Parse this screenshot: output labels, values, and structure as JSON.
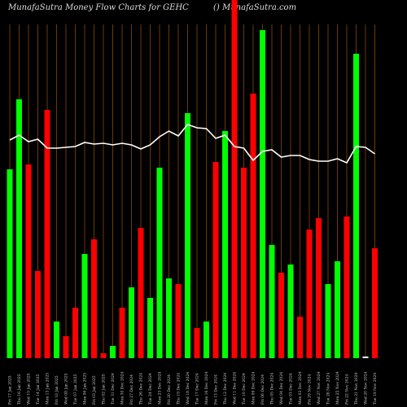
{
  "chart_data": {
    "type": "bar",
    "title": "MunafaSutra  Money Flow  Charts for GEHC",
    "subtitle": "() MunafaSutra.com",
    "categories": [
      "Fri 17 Jan 2025",
      "Thu 16 Jan 2025",
      "Wed 15 Jan 2025",
      "Tue 14 Jan 2025",
      "Mon 13 Jan 2025",
      "Fri 10 Jan 2025",
      "Wed 08 Jan 2025",
      "Tue 07 Jan 2025",
      "Mon 06 Jan 2025",
      "Fri 03 Jan 2025",
      "Thu 02 Jan 2025",
      "Tue 31 Dec 2024",
      "Mon 30 Dec 2024",
      "Fri 27 Dec 2024",
      "Thu 26 Dec 2024",
      "Tue 24 Dec 2024",
      "Mon 23 Dec 2024",
      "Fri 20 Dec 2024",
      "Thu 19 Dec 2024",
      "Wed 18 Dec 2024",
      "Tue 17 Dec 2024",
      "Mon 16 Dec 2024",
      "Fri 13 Dec 2024",
      "Thu 12 Dec 2024",
      "Wed 11 Dec 2024",
      "Tue 10 Dec 2024",
      "Mon 09 Dec 2024",
      "Fri 06 Dec 2024",
      "Thu 05 Dec 2024",
      "Wed 04 Dec 2024",
      "Tue 03 Dec 2024",
      "Mon 02 Dec 2024",
      "Fri 29 Nov 2024",
      "Wed 27 Nov 2024",
      "Tue 26 Nov 2024",
      "Mon 25 Nov 2024",
      "Fri 22 Nov 2024",
      "Thu 21 Nov 2024",
      "Wed 20 Nov 2024",
      "Tue 19 Nov 2024"
    ],
    "values": [
      232,
      318,
      238,
      107,
      305,
      45,
      27,
      62,
      128,
      146,
      6,
      15,
      62,
      87,
      160,
      74,
      234,
      98,
      91,
      301,
      37,
      45,
      241,
      279,
      460,
      234,
      325,
      403,
      139,
      105,
      115,
      51,
      158,
      172,
      91,
      119,
      174,
      374,
      2,
      135
    ],
    "colors": [
      "#00ff00",
      "#00ff00",
      "#ff0000",
      "#ff0000",
      "#ff0000",
      "#00ff00",
      "#ff0000",
      "#ff0000",
      "#00ff00",
      "#ff0000",
      "#ff0000",
      "#00ff00",
      "#ff0000",
      "#00ff00",
      "#ff0000",
      "#00ff00",
      "#00ff00",
      "#00ff00",
      "#ff0000",
      "#00ff00",
      "#ff0000",
      "#00ff00",
      "#ff0000",
      "#00ff00",
      "#ff0000",
      "#ff0000",
      "#ff0000",
      "#00ff00",
      "#00ff00",
      "#ff0000",
      "#00ff00",
      "#ff0000",
      "#ff0000",
      "#ff0000",
      "#00ff00",
      "#00ff00",
      "#ff0000",
      "#00ff00",
      "#ffffff",
      "#ff0000"
    ],
    "line": {
      "color": "#ffffff",
      "values": [
        268,
        274,
        266,
        269,
        258,
        258,
        259,
        260,
        265,
        263,
        264,
        262,
        264,
        262,
        257,
        262,
        272,
        279,
        273,
        287,
        283,
        282,
        270,
        274,
        260,
        258,
        243,
        254,
        256,
        247,
        249,
        249,
        244,
        242,
        242,
        245,
        240,
        260,
        259,
        251
      ]
    },
    "ylim": [
      0,
      440
    ],
    "grid_color": "#b8600b"
  }
}
